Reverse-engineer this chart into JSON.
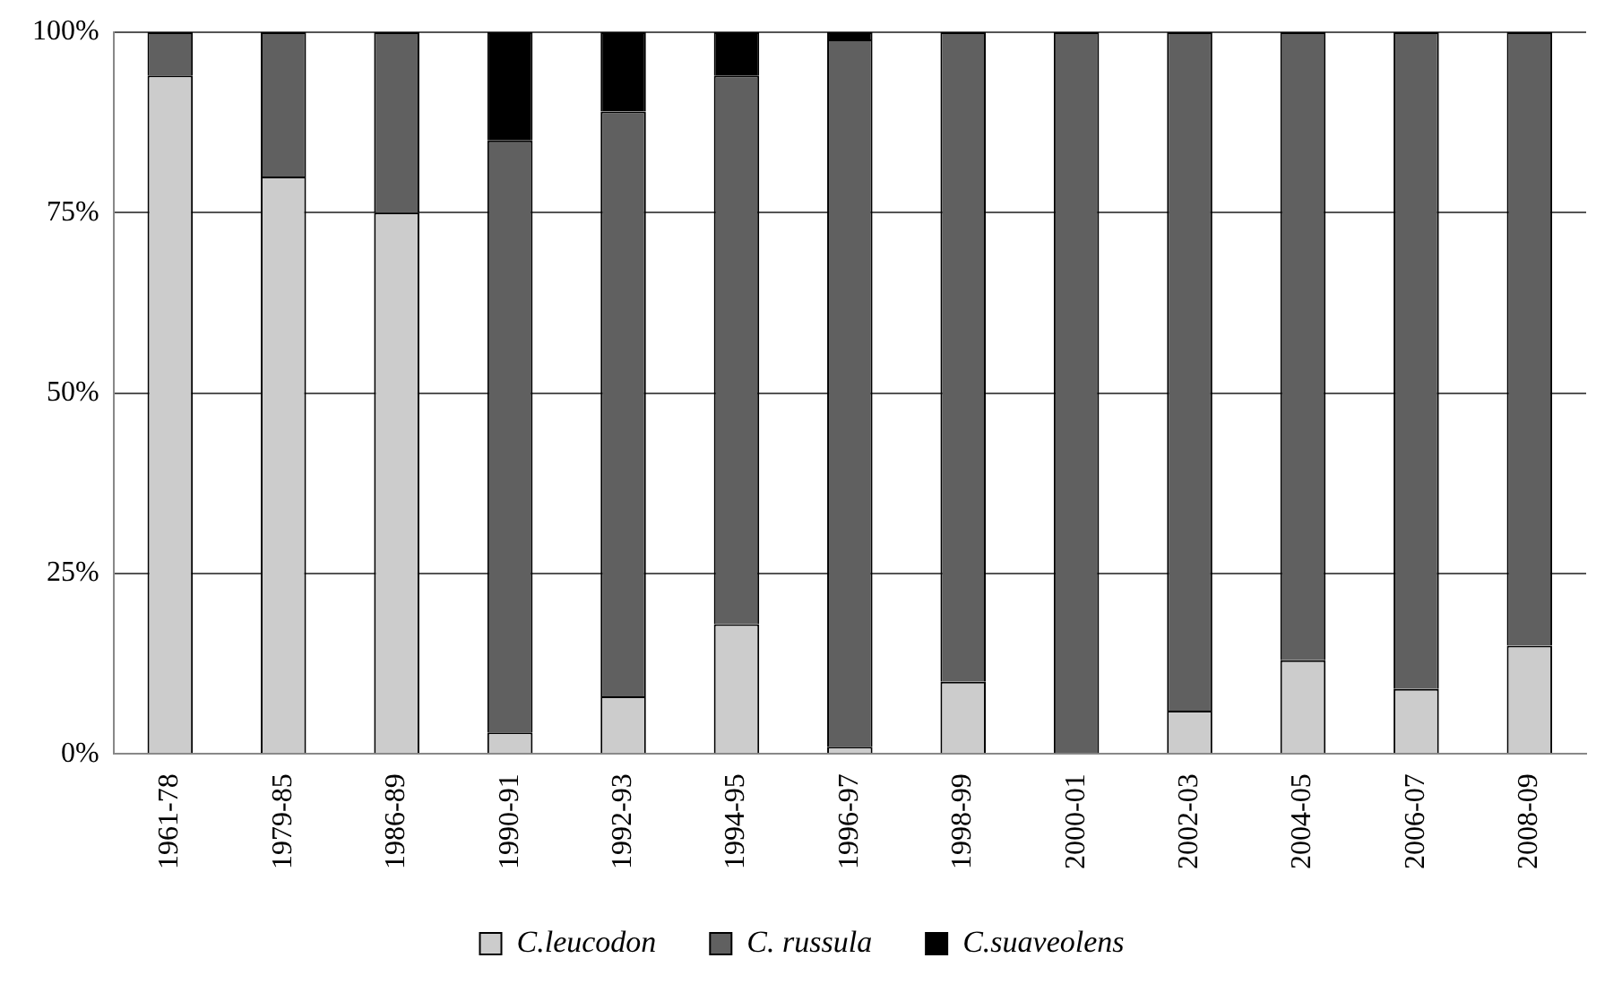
{
  "chart_data": {
    "type": "bar",
    "stacked": true,
    "categories": [
      "1961-78",
      "1979-85",
      "1986-89",
      "1990-91",
      "1992-93",
      "1994-95",
      "1996-97",
      "1998-99",
      "2000-01",
      "2002-03",
      "2004-05",
      "2006-07",
      "2008-09"
    ],
    "series": [
      {
        "name": "C.leucodon",
        "color": "#cccccc",
        "values": [
          94,
          80,
          75,
          3,
          8,
          18,
          1,
          10,
          0,
          6,
          13,
          9,
          15
        ]
      },
      {
        "name": "C. russula",
        "color": "#606060",
        "values": [
          6,
          20,
          25,
          82,
          81,
          76,
          98,
          90,
          100,
          94,
          87,
          91,
          85
        ]
      },
      {
        "name": "C.suaveolens",
        "color": "#000000",
        "values": [
          0,
          0,
          0,
          15,
          11,
          6,
          1,
          0,
          0,
          0,
          0,
          0,
          0
        ]
      }
    ],
    "ylim": [
      0,
      100
    ],
    "yticks": [
      {
        "value": 0,
        "label": "0%"
      },
      {
        "value": 25,
        "label": "25%"
      },
      {
        "value": 50,
        "label": "50%"
      },
      {
        "value": 75,
        "label": "75%"
      },
      {
        "value": 100,
        "label": "100%"
      }
    ],
    "grid": "y",
    "legend": "bottom"
  }
}
